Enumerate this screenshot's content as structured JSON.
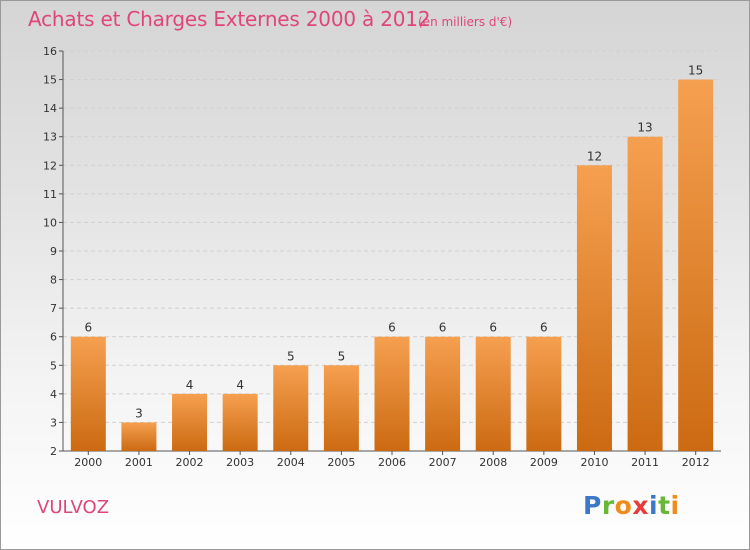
{
  "header": {
    "title": "Achats et Charges Externes 2000 à 2012",
    "subtitle": "(en milliers d'€)"
  },
  "footer": {
    "commune": "VULVOZ",
    "logo": [
      "P",
      "r",
      "o",
      "x",
      "i",
      "t",
      "i"
    ]
  },
  "colors": {
    "text_accent": "#e0457a",
    "bar_light": "#f5a050",
    "bar_dark": "#cc6a12"
  },
  "chart_data": {
    "type": "bar",
    "title": "Achats et Charges Externes 2000 à 2012",
    "subtitle": "(en milliers d'€)",
    "categories": [
      "2000",
      "2001",
      "2002",
      "2003",
      "2004",
      "2005",
      "2006",
      "2007",
      "2008",
      "2009",
      "2010",
      "2011",
      "2012"
    ],
    "values": [
      6,
      3,
      4,
      4,
      5,
      5,
      6,
      6,
      6,
      6,
      12,
      13,
      15
    ],
    "ylim": [
      2,
      16
    ],
    "yticks": [
      2,
      3,
      4,
      5,
      6,
      7,
      8,
      9,
      10,
      11,
      12,
      13,
      14,
      15,
      16
    ],
    "grid": true,
    "xlabel": "",
    "ylabel": ""
  }
}
